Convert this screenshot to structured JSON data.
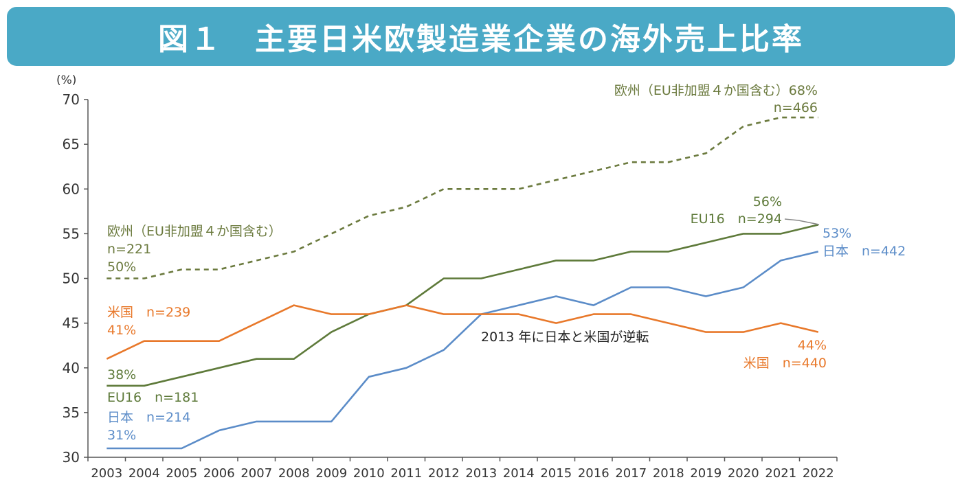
{
  "title": "図１　主要日米欧製造業企業の海外売上比率",
  "colors": {
    "title_bg": "#4aa9c6",
    "europe": "#6b7a3e",
    "eu16": "#5e7a3a",
    "japan": "#5b8cc8",
    "usa": "#e8782a",
    "axis": "#555555"
  },
  "chart_data": {
    "type": "line",
    "y_unit": "(%)",
    "ylim": [
      30,
      70
    ],
    "yticks": [
      30,
      35,
      40,
      45,
      50,
      55,
      60,
      65,
      70
    ],
    "x": [
      "2003",
      "2004",
      "2005",
      "2006",
      "2007",
      "2008",
      "2009",
      "2010",
      "2011",
      "2012",
      "2013",
      "2014",
      "2015",
      "2016",
      "2017",
      "2018",
      "2019",
      "2020",
      "2021",
      "2022"
    ],
    "grid": false,
    "series": [
      {
        "key": "europe",
        "style": "dashed",
        "values": [
          50,
          50,
          51,
          51,
          52,
          53,
          55,
          57,
          58,
          60,
          60,
          60,
          61,
          62,
          63,
          63,
          64,
          67,
          68,
          68
        ]
      },
      {
        "key": "eu16",
        "style": "solid",
        "values": [
          38,
          38,
          39,
          40,
          41,
          41,
          44,
          46,
          47,
          50,
          50,
          51,
          52,
          52,
          53,
          53,
          54,
          55,
          55,
          56
        ]
      },
      {
        "key": "japan",
        "style": "solid",
        "values": [
          31,
          31,
          31,
          33,
          34,
          34,
          34,
          39,
          40,
          42,
          46,
          47,
          48,
          47,
          49,
          49,
          48,
          49,
          52,
          53
        ]
      },
      {
        "key": "usa",
        "style": "solid",
        "values": [
          41,
          43,
          43,
          43,
          45,
          47,
          46,
          46,
          47,
          46,
          46,
          46,
          45,
          46,
          46,
          45,
          44,
          44,
          45,
          44
        ]
      }
    ],
    "annotations": {
      "europe_start_name": "欧州（EU非加盟４か国含む）",
      "europe_start_n": "n=221",
      "europe_start_pct": "50%",
      "europe_end_line1": "欧州（EU非加盟４か国含む）68%",
      "europe_end_n": "n=466",
      "usa_start_name": "米国　n=239",
      "usa_start_pct": "41%",
      "usa_end_pct": "44%",
      "usa_end_name": "米国　n=440",
      "eu16_start_pct": "38%",
      "eu16_start_name": "EU16　n=181",
      "eu16_end_pct": "56%",
      "eu16_end_name": "EU16　n=294",
      "japan_start_name": "日本　n=214",
      "japan_start_pct": "31%",
      "japan_end_pct": "53%",
      "japan_end_name": "日本　n=442",
      "crossover": "2013 年に日本と米国が逆転"
    }
  }
}
